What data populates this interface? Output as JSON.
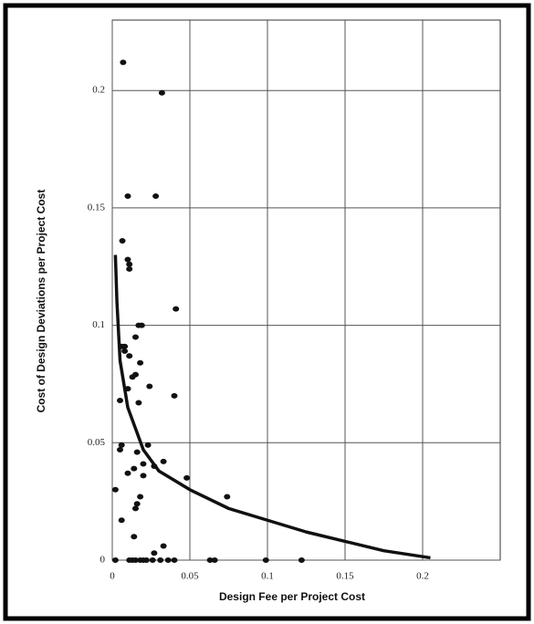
{
  "chart_data": {
    "type": "scatter",
    "x_label": "Design Fee per Project Cost",
    "y_label": "Cost of Design Deviations per Project Cost",
    "xlim": [
      0,
      0.25
    ],
    "ylim": [
      0,
      0.23
    ],
    "xticks": [
      0,
      0.05,
      0.1,
      0.15,
      0.2
    ],
    "yticks": [
      0,
      0.05,
      0.1,
      0.15,
      0.2
    ],
    "grid": true,
    "series": [
      {
        "type": "scatter",
        "color": "#111111",
        "x": [
          0.007,
          0.032,
          0.01,
          0.028,
          0.0065,
          0.01,
          0.011,
          0.011,
          0.041,
          0.017,
          0.019,
          0.006,
          0.008,
          0.008,
          0.015,
          0.011,
          0.018,
          0.015,
          0.013,
          0.024,
          0.01,
          0.017,
          0.04,
          0.005,
          0.006,
          0.005,
          0.023,
          0.016,
          0.02,
          0.033,
          0.027,
          0.014,
          0.01,
          0.02,
          0.048,
          0.002,
          0.074,
          0.018,
          0.016,
          0.015,
          0.006,
          0.014,
          0.033,
          0.027,
          0.002,
          0.011,
          0.013,
          0.015,
          0.018,
          0.02,
          0.022,
          0.026,
          0.031,
          0.036,
          0.04,
          0.063,
          0.066,
          0.099,
          0.122
        ],
        "values": [
          0.212,
          0.199,
          0.155,
          0.155,
          0.136,
          0.128,
          0.126,
          0.124,
          0.107,
          0.1,
          0.1,
          0.091,
          0.091,
          0.089,
          0.095,
          0.087,
          0.084,
          0.079,
          0.078,
          0.074,
          0.073,
          0.067,
          0.07,
          0.068,
          0.049,
          0.047,
          0.049,
          0.046,
          0.041,
          0.042,
          0.04,
          0.039,
          0.037,
          0.036,
          0.035,
          0.03,
          0.027,
          0.027,
          0.024,
          0.022,
          0.017,
          0.01,
          0.006,
          0.003,
          0,
          0,
          0,
          0,
          0,
          0,
          0,
          0,
          0,
          0,
          0,
          0,
          0,
          0,
          0
        ]
      },
      {
        "type": "line",
        "color": "#111111",
        "x": [
          0.002,
          0.003,
          0.005,
          0.01,
          0.02,
          0.03,
          0.05,
          0.075,
          0.1,
          0.125,
          0.15,
          0.175,
          0.205
        ],
        "values": [
          0.13,
          0.11,
          0.085,
          0.065,
          0.047,
          0.038,
          0.03,
          0.022,
          0.017,
          0.012,
          0.008,
          0.004,
          0.001
        ]
      }
    ]
  }
}
